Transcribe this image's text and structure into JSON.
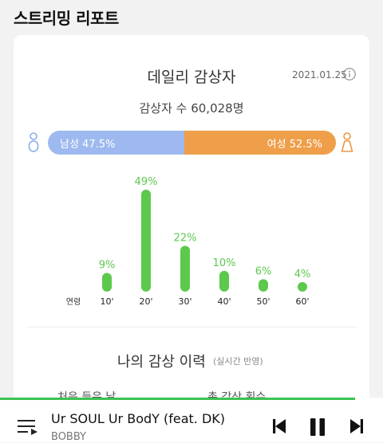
{
  "page": {
    "title": "스트리밍 리포트"
  },
  "card": {
    "title": "데일리 감상자",
    "date": "2021.01.25",
    "listener_count": "감상자 수 60,028명"
  },
  "gender": {
    "male_label": "남성 47.5%",
    "female_label": "여성 52.5%",
    "male_share": 47.5,
    "female_share": 52.5,
    "male_color": "#9db9ef",
    "female_color": "#ef9f4a"
  },
  "chart_data": {
    "type": "bar",
    "xlabel": "연령",
    "categories": [
      "10'",
      "20'",
      "30'",
      "40'",
      "50'",
      "60'"
    ],
    "values": [
      9,
      49,
      22,
      10,
      6,
      4
    ],
    "value_labels": [
      "9%",
      "49%",
      "22%",
      "10%",
      "6%",
      "4%"
    ],
    "color": "#5cc94d",
    "grid": false
  },
  "history": {
    "title": "나의 감상 이력",
    "subtitle": "(실시간 반영)",
    "first_listen": "처음 들은 날",
    "total_plays": "총 감상 횟수"
  },
  "player": {
    "song_title": "Ur SOUL Ur BodY (feat. DK)",
    "artist": "BOBBY",
    "progress": 0.927,
    "accent": "#3bc350"
  },
  "icons": [
    "male-icon",
    "female-icon",
    "info-icon",
    "queue-icon",
    "previous-icon",
    "pause-icon",
    "next-icon"
  ]
}
